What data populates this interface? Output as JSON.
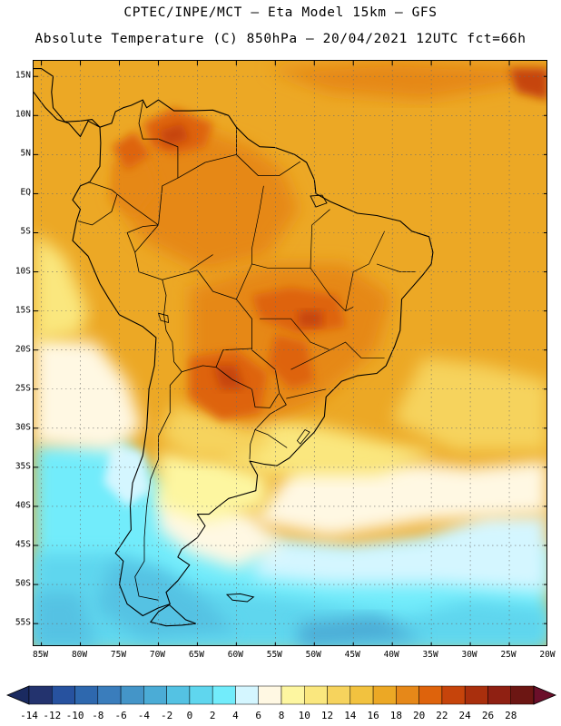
{
  "header": {
    "line1": "CPTEC/INPE/MCT –  Eta Model 15km – GFS",
    "line2": "Absolute Temperature (C) 850hPa – 20/04/2021 12UTC fct=66h"
  },
  "map": {
    "region": "South America",
    "variable": "Absolute Temperature (C) 850hPa",
    "lat_range_deg": [
      -58,
      17
    ],
    "lon_range_deg": [
      -86,
      -20
    ],
    "lat_labels": [
      "15N",
      "10N",
      "5N",
      "EQ",
      "5S",
      "10S",
      "15S",
      "20S",
      "25S",
      "30S",
      "35S",
      "40S",
      "45S",
      "50S",
      "55S"
    ],
    "lat_values": [
      15,
      10,
      5,
      0,
      -5,
      -10,
      -15,
      -20,
      -25,
      -30,
      -35,
      -40,
      -45,
      -50,
      -55
    ],
    "lon_labels": [
      "85W",
      "80W",
      "75W",
      "70W",
      "65W",
      "60W",
      "55W",
      "50W",
      "45W",
      "40W",
      "35W",
      "30W",
      "25W",
      "20W"
    ],
    "lon_values": [
      -85,
      -80,
      -75,
      -70,
      -65,
      -60,
      -55,
      -50,
      -45,
      -40,
      -35,
      -30,
      -25,
      -20
    ]
  },
  "colorbar": {
    "labels": [
      "-14",
      "-12",
      "-10",
      "-8",
      "-6",
      "-4",
      "-2",
      "0",
      "2",
      "4",
      "6",
      "8",
      "10",
      "12",
      "14",
      "16",
      "18",
      "20",
      "22",
      "24",
      "26",
      "28"
    ],
    "colors": [
      "#23336e",
      "#27529f",
      "#2e68ae",
      "#3a7dbc",
      "#4495c8",
      "#4bacd6",
      "#54c2e3",
      "#5fd6ee",
      "#72ecfb",
      "#d4f6ff",
      "#fff8e3",
      "#fdf6a0",
      "#fae77e",
      "#f6d35d",
      "#f2c23f",
      "#eca825",
      "#e68819",
      "#de630c",
      "#c6440b",
      "#a92f0d",
      "#8f2012",
      "#6c1613"
    ],
    "under_color": "#1a2a60",
    "over_color": "#6b0f2a"
  }
}
